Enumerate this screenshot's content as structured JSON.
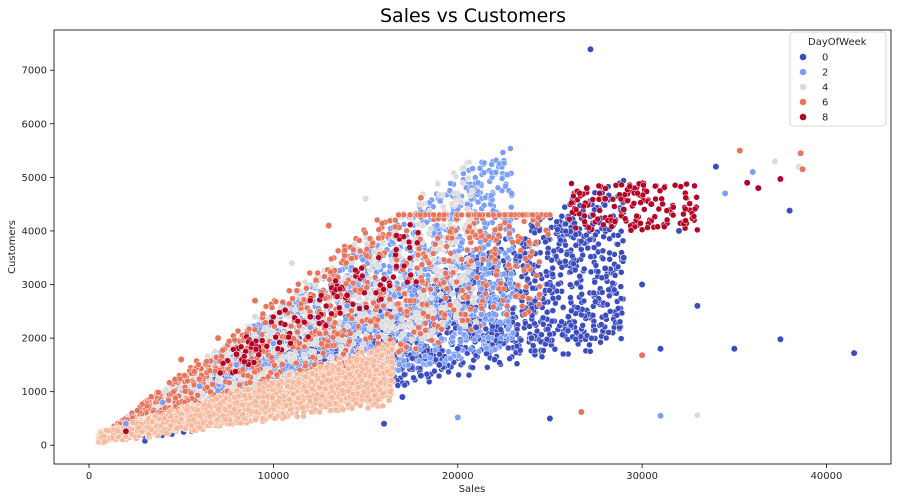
{
  "chart_data": {
    "type": "scatter",
    "title": "Sales vs Customers",
    "xlabel": "Sales",
    "ylabel": "Customers",
    "xlim": [
      -1900,
      43500
    ],
    "ylim": [
      -350,
      7750
    ],
    "xticks": [
      0,
      10000,
      20000,
      30000,
      40000
    ],
    "yticks": [
      0,
      1000,
      2000,
      3000,
      4000,
      5000,
      6000,
      7000
    ],
    "grid": false,
    "legend": {
      "title": "DayOfWeek",
      "placement": "top-right",
      "entries": [
        {
          "label": "0",
          "color": "#3b4cc0"
        },
        {
          "label": "2",
          "color": "#7b9ff9"
        },
        {
          "label": "4",
          "color": "#dddcdc"
        },
        {
          "label": "6",
          "color": "#e7745b"
        },
        {
          "label": "8",
          "color": "#b40426"
        }
      ]
    },
    "series": [
      {
        "name": "0",
        "color": "#3b4cc0",
        "points": [
          [
            27200,
            7390
          ],
          [
            41500,
            1720
          ],
          [
            38000,
            4380
          ],
          [
            37500,
            1980
          ],
          [
            35000,
            1800
          ],
          [
            34000,
            5200
          ],
          [
            36000,
            5100
          ],
          [
            33000,
            2600
          ],
          [
            31000,
            1800
          ],
          [
            29000,
            3500
          ],
          [
            26000,
            2400
          ],
          [
            24000,
            2000
          ],
          [
            22000,
            1600
          ],
          [
            21000,
            2200
          ],
          [
            20000,
            1800
          ],
          [
            19000,
            1500
          ],
          [
            18000,
            1300
          ],
          [
            17000,
            900
          ],
          [
            16000,
            400
          ],
          [
            25000,
            500
          ],
          [
            28000,
            3300
          ],
          [
            30000,
            3000
          ],
          [
            32000,
            4000
          ]
        ]
      },
      {
        "name": "2",
        "color": "#7b9ff9",
        "points": [
          [
            31000,
            550
          ],
          [
            20000,
            520
          ],
          [
            14000,
            2600
          ],
          [
            12000,
            2200
          ],
          [
            10000,
            1900
          ],
          [
            8000,
            1500
          ],
          [
            6000,
            1100
          ],
          [
            4000,
            800
          ],
          [
            2000,
            400
          ],
          [
            36000,
            5100
          ],
          [
            34500,
            4700
          ]
        ]
      },
      {
        "name": "4",
        "color": "#dddcdc",
        "points": [
          [
            33000,
            560
          ],
          [
            37200,
            5300
          ],
          [
            38500,
            5200
          ],
          [
            15000,
            4600
          ],
          [
            11000,
            3400
          ],
          [
            9000,
            2400
          ]
        ]
      },
      {
        "name": "6",
        "color": "#e7745b",
        "points": [
          [
            35300,
            5500
          ],
          [
            38600,
            5450
          ],
          [
            38700,
            5150
          ],
          [
            26700,
            620
          ],
          [
            30000,
            1680
          ],
          [
            18000,
            4620
          ],
          [
            13000,
            4100
          ],
          [
            9000,
            2700
          ],
          [
            7000,
            2000
          ],
          [
            5000,
            1600
          ]
        ]
      },
      {
        "name": "8",
        "color": "#b40426",
        "points": [
          [
            37500,
            4970
          ],
          [
            36300,
            4800
          ],
          [
            35700,
            4900
          ],
          [
            30500,
            4500
          ],
          [
            29000,
            4400
          ],
          [
            28000,
            4600
          ],
          [
            27000,
            4800
          ],
          [
            16000,
            3100
          ],
          [
            14000,
            2800
          ],
          [
            12000,
            2400
          ],
          [
            8000,
            1700
          ],
          [
            2000,
            260
          ]
        ]
      }
    ]
  }
}
